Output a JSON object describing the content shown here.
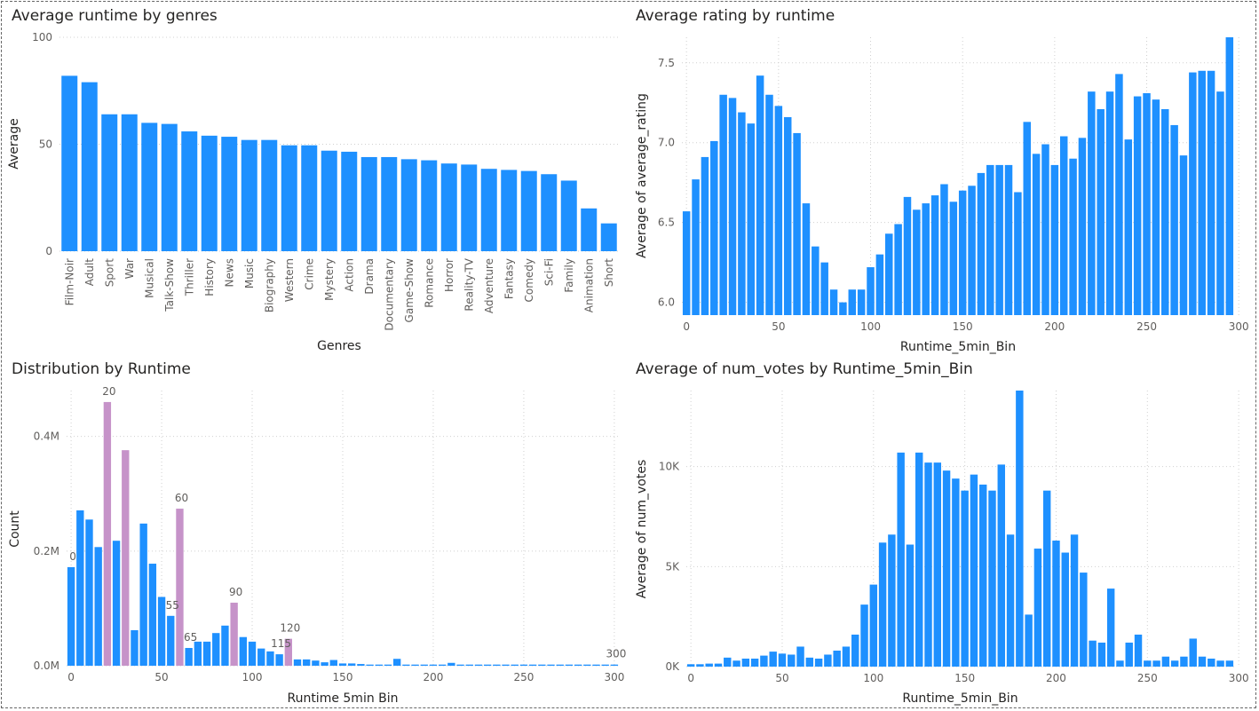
{
  "colors": {
    "bar": "#1E90FF",
    "highlight": "#C693C9",
    "text": "#252423",
    "tick": "#605E5C",
    "grid": "#D0D0D0"
  },
  "chart_data": [
    {
      "type": "bar",
      "title": "Average runtime by genres",
      "xlabel": "Genres",
      "ylabel": "Average",
      "ylim": [
        0,
        100
      ],
      "yticks": [
        0,
        50,
        100
      ],
      "yticklabels": [
        "0",
        "50",
        "100"
      ],
      "grid": true,
      "categories": [
        "Film-Noir",
        "Adult",
        "Sport",
        "War",
        "Musical",
        "Talk-Show",
        "Thriller",
        "History",
        "News",
        "Music",
        "Biography",
        "Western",
        "Crime",
        "Mystery",
        "Action",
        "Drama",
        "Documentary",
        "Game-Show",
        "Romance",
        "Horror",
        "Reality-TV",
        "Adventure",
        "Fantasy",
        "Comedy",
        "Sci-Fi",
        "Family",
        "Animation",
        "Short"
      ],
      "values": [
        82,
        79,
        64,
        64,
        60,
        59.5,
        56,
        54,
        53.5,
        52,
        52,
        49.5,
        49.5,
        47,
        46.5,
        44,
        44,
        43,
        42.5,
        41,
        40.5,
        38.5,
        38,
        37.5,
        36,
        33,
        20,
        13
      ]
    },
    {
      "type": "bar",
      "title": "Average rating by runtime",
      "xlabel": "Runtime_5min_Bin",
      "ylabel": "Average of average_rating",
      "ylim": [
        5.92,
        7.66
      ],
      "yticks": [
        6.0,
        6.5,
        7.0,
        7.5
      ],
      "yticklabels": [
        "6.0",
        "6.5",
        "7.0",
        "7.5"
      ],
      "xticks": [
        0,
        50,
        100,
        150,
        200,
        250,
        300
      ],
      "xticklabels": [
        "0",
        "50",
        "100",
        "150",
        "200",
        "250",
        "300"
      ],
      "xlim": [
        -2.5,
        297.5
      ],
      "grid": true,
      "x": [
        0,
        5,
        10,
        15,
        20,
        25,
        30,
        35,
        40,
        45,
        50,
        55,
        60,
        65,
        70,
        75,
        80,
        85,
        90,
        95,
        100,
        105,
        110,
        115,
        120,
        125,
        130,
        135,
        140,
        145,
        150,
        155,
        160,
        165,
        170,
        175,
        180,
        185,
        190,
        195,
        200,
        205,
        210,
        215,
        220,
        225,
        230,
        235,
        240,
        245,
        250,
        255,
        260,
        265,
        270,
        275,
        280,
        285,
        290,
        295
      ],
      "values": [
        6.57,
        6.77,
        6.91,
        7.01,
        7.3,
        7.28,
        7.19,
        7.12,
        7.42,
        7.3,
        7.23,
        7.16,
        7.06,
        6.62,
        6.35,
        6.25,
        6.08,
        6.0,
        6.08,
        6.08,
        6.22,
        6.3,
        6.43,
        6.49,
        6.66,
        6.58,
        6.62,
        6.67,
        6.74,
        6.63,
        6.7,
        6.73,
        6.81,
        6.86,
        6.86,
        6.86,
        6.69,
        7.13,
        6.93,
        6.99,
        6.86,
        7.04,
        6.9,
        7.03,
        7.32,
        7.21,
        7.32,
        7.43,
        7.02,
        7.29,
        7.31,
        7.27,
        7.21,
        7.11,
        6.92,
        7.44,
        7.45,
        7.45,
        7.32,
        7.66
      ]
    },
    {
      "type": "bar",
      "title": "Distribution by Runtime",
      "xlabel": "Runtime 5min Bin",
      "ylabel": "Count",
      "ylim": [
        0,
        480000
      ],
      "yticks": [
        0,
        200000,
        400000
      ],
      "yticklabels": [
        "0.0M",
        "0.2M",
        "0.4M"
      ],
      "xticks": [
        0,
        50,
        100,
        150,
        200,
        250,
        300
      ],
      "xticklabels": [
        "0",
        "50",
        "100",
        "150",
        "200",
        "250",
        "300"
      ],
      "xlim": [
        -2.5,
        302.5
      ],
      "grid": true,
      "x": [
        0,
        5,
        10,
        15,
        20,
        25,
        30,
        35,
        40,
        45,
        50,
        55,
        60,
        65,
        70,
        75,
        80,
        85,
        90,
        95,
        100,
        105,
        110,
        115,
        120,
        125,
        130,
        135,
        140,
        145,
        150,
        155,
        160,
        165,
        170,
        175,
        180,
        185,
        190,
        195,
        200,
        205,
        210,
        215,
        220,
        225,
        230,
        235,
        240,
        245,
        250,
        255,
        260,
        265,
        270,
        275,
        280,
        285,
        290,
        295,
        300
      ],
      "values": [
        172000,
        271000,
        255000,
        207000,
        460000,
        218000,
        376000,
        62000,
        248000,
        178000,
        120000,
        87000,
        274000,
        31000,
        42000,
        42000,
        57000,
        70000,
        110000,
        50000,
        42000,
        30000,
        25000,
        20000,
        47000,
        11000,
        11000,
        9000,
        6000,
        10000,
        4000,
        4000,
        3000,
        2000,
        2000,
        2000,
        12000,
        2000,
        2000,
        2000,
        2000,
        2000,
        5000,
        2000,
        2000,
        2000,
        2000,
        2000,
        2000,
        2000,
        2000,
        2000,
        2000,
        2000,
        2000,
        2000,
        2000,
        2000,
        2000,
        2000,
        2000
      ],
      "highlighted": [
        20,
        30,
        60,
        90,
        120
      ],
      "data_labels": [
        {
          "x": 0,
          "text": "0"
        },
        {
          "x": 20,
          "text": "20"
        },
        {
          "x": 55,
          "text": "55"
        },
        {
          "x": 60,
          "text": "60"
        },
        {
          "x": 65,
          "text": "65"
        },
        {
          "x": 90,
          "text": "90"
        },
        {
          "x": 115,
          "text": "115"
        },
        {
          "x": 120,
          "text": "120"
        },
        {
          "x": 300,
          "text": "300"
        }
      ]
    },
    {
      "type": "bar",
      "title": "Average of num_votes by Runtime_5min_Bin",
      "xlabel": "Runtime_5min_Bin",
      "ylabel": "Average of num_votes",
      "ylim": [
        0,
        13800
      ],
      "yticks": [
        0,
        5000,
        10000
      ],
      "yticklabels": [
        "0K",
        "5K",
        "10K"
      ],
      "xticks": [
        0,
        50,
        100,
        150,
        200,
        250,
        300
      ],
      "xticklabels": [
        "0",
        "50",
        "100",
        "150",
        "200",
        "250",
        "300"
      ],
      "xlim": [
        -2.5,
        297.5
      ],
      "grid": true,
      "x": [
        0,
        5,
        10,
        15,
        20,
        25,
        30,
        35,
        40,
        45,
        50,
        55,
        60,
        65,
        70,
        75,
        80,
        85,
        90,
        95,
        100,
        105,
        110,
        115,
        120,
        125,
        130,
        135,
        140,
        145,
        150,
        155,
        160,
        165,
        170,
        175,
        180,
        185,
        190,
        195,
        200,
        205,
        210,
        215,
        220,
        225,
        230,
        235,
        240,
        245,
        250,
        255,
        260,
        265,
        270,
        275,
        280,
        285,
        290,
        295
      ],
      "values": [
        120,
        120,
        150,
        150,
        450,
        300,
        400,
        400,
        550,
        750,
        650,
        600,
        1000,
        450,
        400,
        600,
        800,
        1000,
        1600,
        3100,
        4100,
        6200,
        6600,
        10700,
        6100,
        10700,
        10200,
        10200,
        9800,
        9400,
        8800,
        9600,
        9100,
        8800,
        10100,
        6600,
        13800,
        2600,
        5900,
        8800,
        6300,
        5700,
        6600,
        4700,
        1300,
        1200,
        3900,
        300,
        1200,
        1600,
        300,
        300,
        500,
        300,
        500,
        1400,
        500,
        400,
        300,
        300
      ]
    }
  ]
}
